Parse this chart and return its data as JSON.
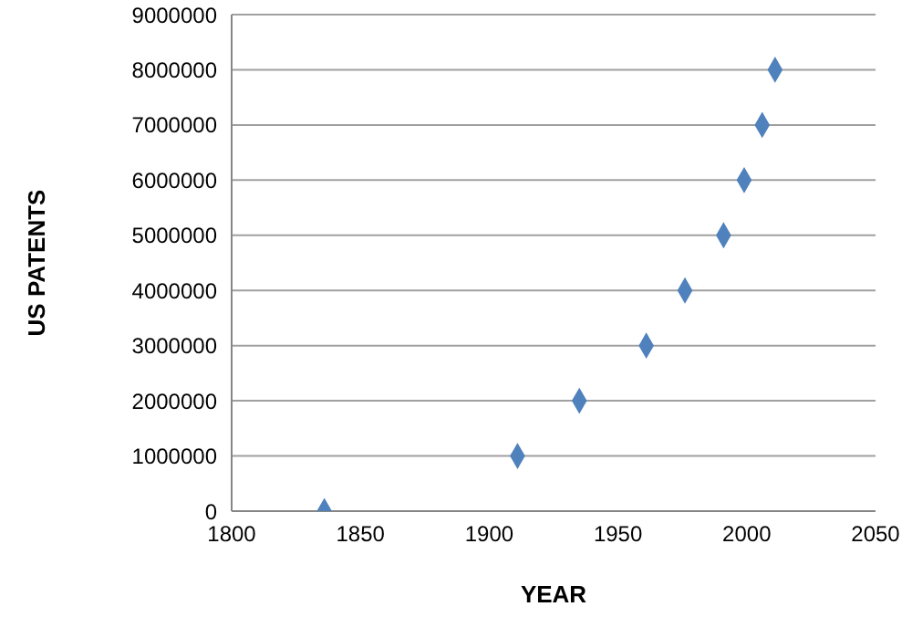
{
  "chart_data": {
    "type": "scatter",
    "xlabel": "YEAR",
    "ylabel": "US PATENTS",
    "x": [
      1836,
      1911,
      1935,
      1961,
      1976,
      1991,
      1999,
      2006,
      2011
    ],
    "values": [
      0,
      1000000,
      2000000,
      3000000,
      4000000,
      5000000,
      6000000,
      7000000,
      8000000
    ],
    "color": "#4f81bd",
    "marker": "diamond",
    "xlim": [
      1800,
      2050
    ],
    "xticks": [
      1800,
      1850,
      1900,
      1950,
      2000,
      2050
    ],
    "ylim": [
      0,
      9000000
    ],
    "yticks": [
      0,
      1000000,
      2000000,
      3000000,
      4000000,
      5000000,
      6000000,
      7000000,
      8000000,
      9000000
    ],
    "grid": "y",
    "legend": false
  }
}
